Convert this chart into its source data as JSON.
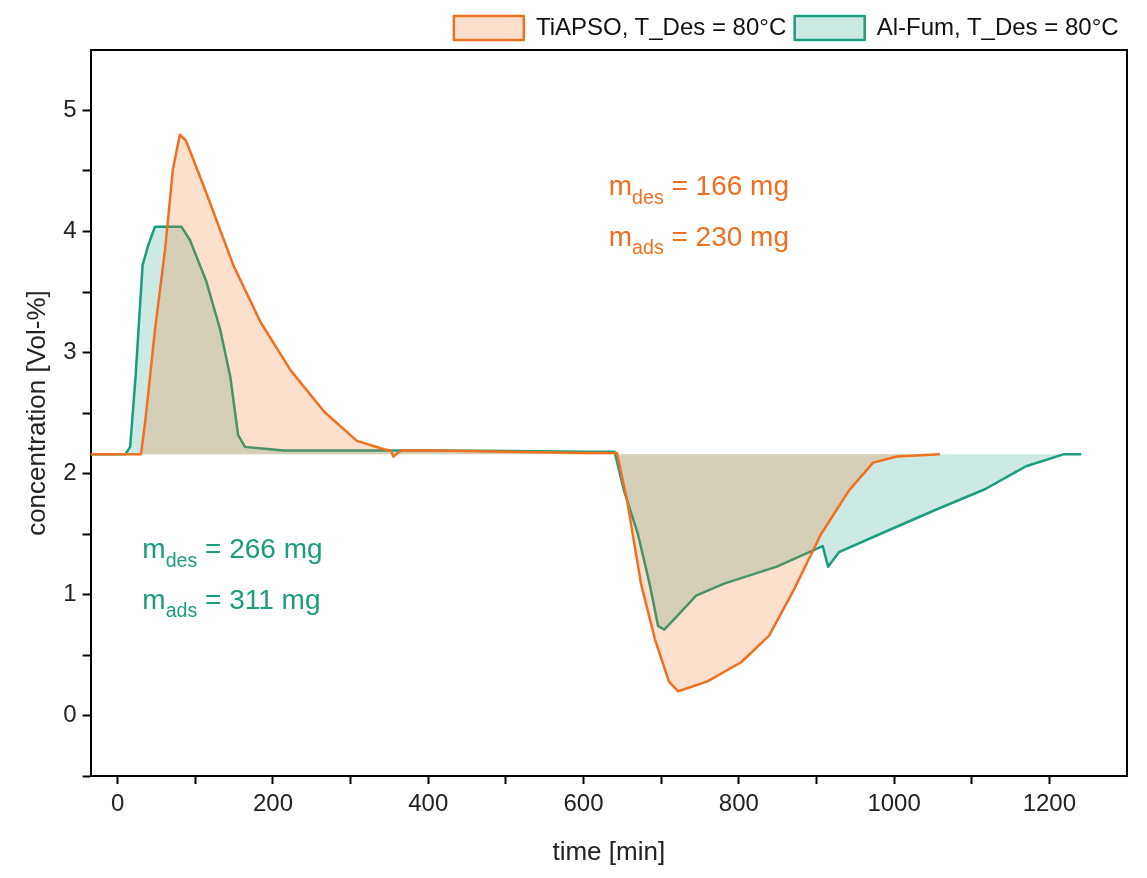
{
  "chart_data": {
    "type": "area",
    "xlabel": "time [min]",
    "ylabel": "concentration [Vol-%]",
    "xlim": [
      -35,
      1300
    ],
    "ylim": [
      -0.5,
      5.5
    ],
    "xticks": [
      0,
      {
        "value": 100,
        "label": null
      },
      200,
      {
        "value": 300,
        "label": null
      },
      400,
      {
        "value": 500,
        "label": null
      },
      600,
      {
        "value": 700,
        "label": null
      },
      800,
      {
        "value": 900,
        "label": null
      },
      1000,
      {
        "value": 1100,
        "label": null
      },
      1200
    ],
    "yticks": [
      {
        "value": -0.5,
        "label": null
      },
      0,
      {
        "value": 0.5,
        "label": null
      },
      1,
      {
        "value": 1.5,
        "label": null
      },
      2,
      {
        "value": 2.5,
        "label": null
      },
      3,
      {
        "value": 3.5,
        "label": null
      },
      4,
      {
        "value": 4.5,
        "label": null
      },
      5
    ],
    "grid": false,
    "legend": "top right",
    "marker": "none",
    "line_style": "solid",
    "series": [
      {
        "name": "TiAPSO, T_Des = 80°C",
        "color": "#f07020",
        "x": [
          -35,
          -23,
          30,
          36,
          48,
          61,
          71,
          80,
          88,
          114,
          149,
          184,
          223,
          266,
          308,
          343,
          352,
          355,
          365,
          408,
          603,
          643,
          656,
          674,
          692,
          710,
          722,
          759,
          803,
          839,
          871,
          906,
          942,
          973,
          1004,
          1059
        ],
        "values": [
          2.16,
          2.16,
          2.16,
          2.46,
          3.19,
          3.85,
          4.51,
          4.8,
          4.75,
          4.32,
          3.72,
          3.25,
          2.85,
          2.51,
          2.27,
          2.2,
          2.19,
          2.14,
          2.19,
          2.19,
          2.17,
          2.17,
          1.78,
          1.09,
          0.63,
          0.28,
          0.2,
          0.28,
          0.44,
          0.66,
          1.04,
          1.5,
          1.86,
          2.09,
          2.14,
          2.16
        ]
      },
      {
        "name": "Al-Fum, T_Des = 80°C",
        "color": "#1a9c80",
        "x": [
          -35,
          -23,
          10,
          16,
          23,
          32,
          39,
          48,
          82,
          93,
          114,
          132,
          145,
          155,
          164,
          214,
          408,
          603,
          640,
          652,
          670,
          685,
          696,
          704,
          719,
          745,
          781,
          849,
          908,
          915,
          929,
          982,
          1050,
          1117,
          1170,
          1219,
          1241
        ],
        "values": [
          2.16,
          2.16,
          2.16,
          2.22,
          2.8,
          3.72,
          3.88,
          4.04,
          4.04,
          3.93,
          3.59,
          3.19,
          2.8,
          2.32,
          2.22,
          2.19,
          2.19,
          2.18,
          2.18,
          1.86,
          1.5,
          1.09,
          0.74,
          0.71,
          0.81,
          0.99,
          1.09,
          1.23,
          1.4,
          1.23,
          1.35,
          1.5,
          1.69,
          1.87,
          2.06,
          2.16,
          2.16
        ]
      }
    ],
    "annotations": [
      "m$_{des}$ = 166 mg",
      "m$_{ads}$ = 230 mg",
      "m$_{des}$ = 266 mg",
      "m$_{ads}$ = 311 mg"
    ]
  }
}
